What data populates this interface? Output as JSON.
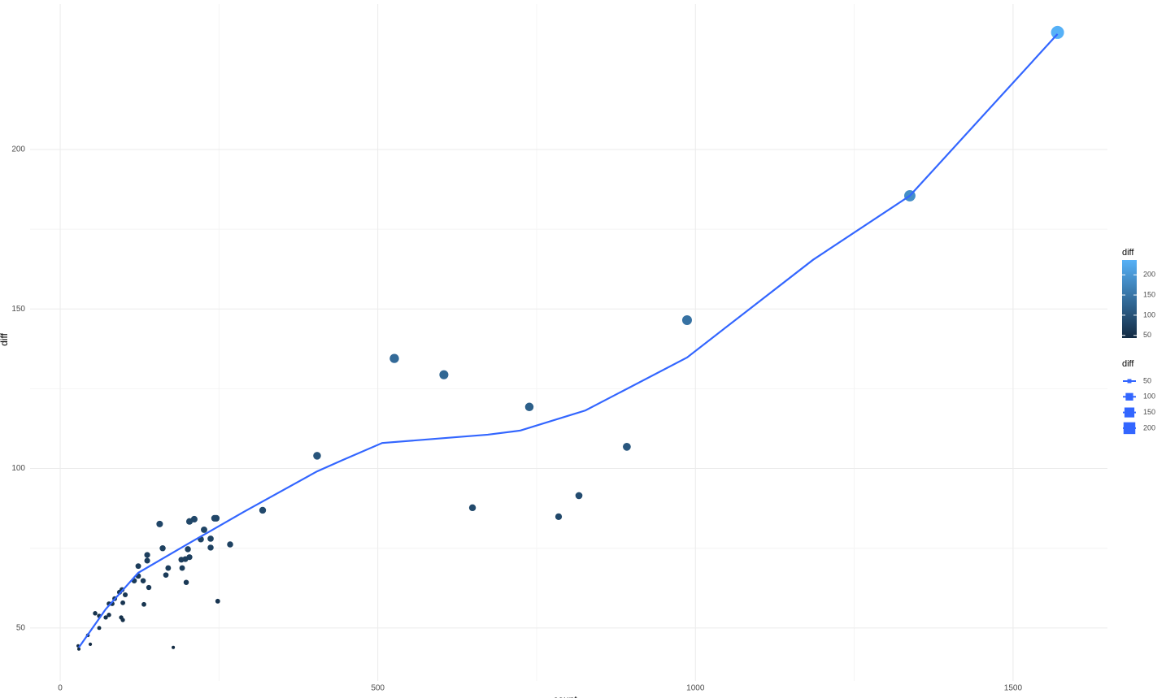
{
  "chart_data": {
    "type": "scatter",
    "x_label": "count",
    "y_label": "diff",
    "x": [
      1570,
      1337.5,
      986.8,
      526,
      604,
      738.5,
      892,
      404.4,
      649,
      816.6,
      784.6,
      318.7,
      267.5,
      248,
      178,
      245.7,
      243,
      211,
      203.5,
      226.5,
      236.8,
      221.4,
      236.8,
      201,
      161.3,
      156.6,
      137,
      203.5,
      197,
      190.7,
      137,
      192,
      170,
      166.4,
      122.9,
      122.9,
      130.6,
      116.5,
      198.4,
      139.5,
      97.3,
      93.4,
      102.4,
      85.8,
      98.6,
      76.8,
      81.9,
      131.8,
      55,
      61.4,
      76.8,
      71.7,
      96,
      98.6,
      61.4,
      43.5,
      47.4,
      28.2,
      29.4
    ],
    "values": [
      236.7,
      185.5,
      146.5,
      134.5,
      129.4,
      119.3,
      106.8,
      104,
      87.7,
      91.5,
      84.9,
      86.9,
      76.2,
      58.4,
      43.9,
      84.4,
      84.4,
      84.1,
      83.4,
      80.8,
      78,
      77.8,
      75.2,
      74.7,
      75,
      82.6,
      72.9,
      72.2,
      71.6,
      71.4,
      71.1,
      68.8,
      68.8,
      66.6,
      69.4,
      66.3,
      64.8,
      64.8,
      64.3,
      62.7,
      62,
      61.2,
      60.4,
      59.2,
      57.9,
      57.6,
      57.6,
      57.4,
      54.6,
      53.8,
      54.1,
      53.3,
      53.3,
      52.5,
      50,
      47.7,
      44.9,
      44.4,
      43.4
    ],
    "color_low": "#132B43",
    "color_high": "#56B1F7",
    "smooth": {
      "color": "#3366FF",
      "x": [
        29.4,
        71.7,
        122.9,
        199.7,
        289,
        404.4,
        442.9,
        506.9,
        622,
        673,
        724.5,
        826.8,
        986.8,
        1185,
        1337.5,
        1570
      ],
      "y": [
        43.9,
        55.9,
        67.3,
        76.2,
        86.4,
        99.1,
        102.5,
        108,
        109.8,
        110.6,
        111.9,
        118.2,
        134.8,
        165.4,
        185.5,
        236.2
      ]
    },
    "xlim": [
      -47.4,
      1648.6
    ],
    "ylim": [
      33.4,
      245.6
    ],
    "xticks": [
      0,
      500,
      1000,
      1500
    ],
    "yticks": [
      50,
      100,
      150,
      200
    ],
    "grid": true,
    "color_legend": {
      "title": "diff",
      "ticks": [
        50,
        100,
        150,
        200
      ]
    },
    "size_legend": {
      "title": "diff",
      "ticks": [
        50,
        100,
        150,
        200
      ]
    }
  }
}
